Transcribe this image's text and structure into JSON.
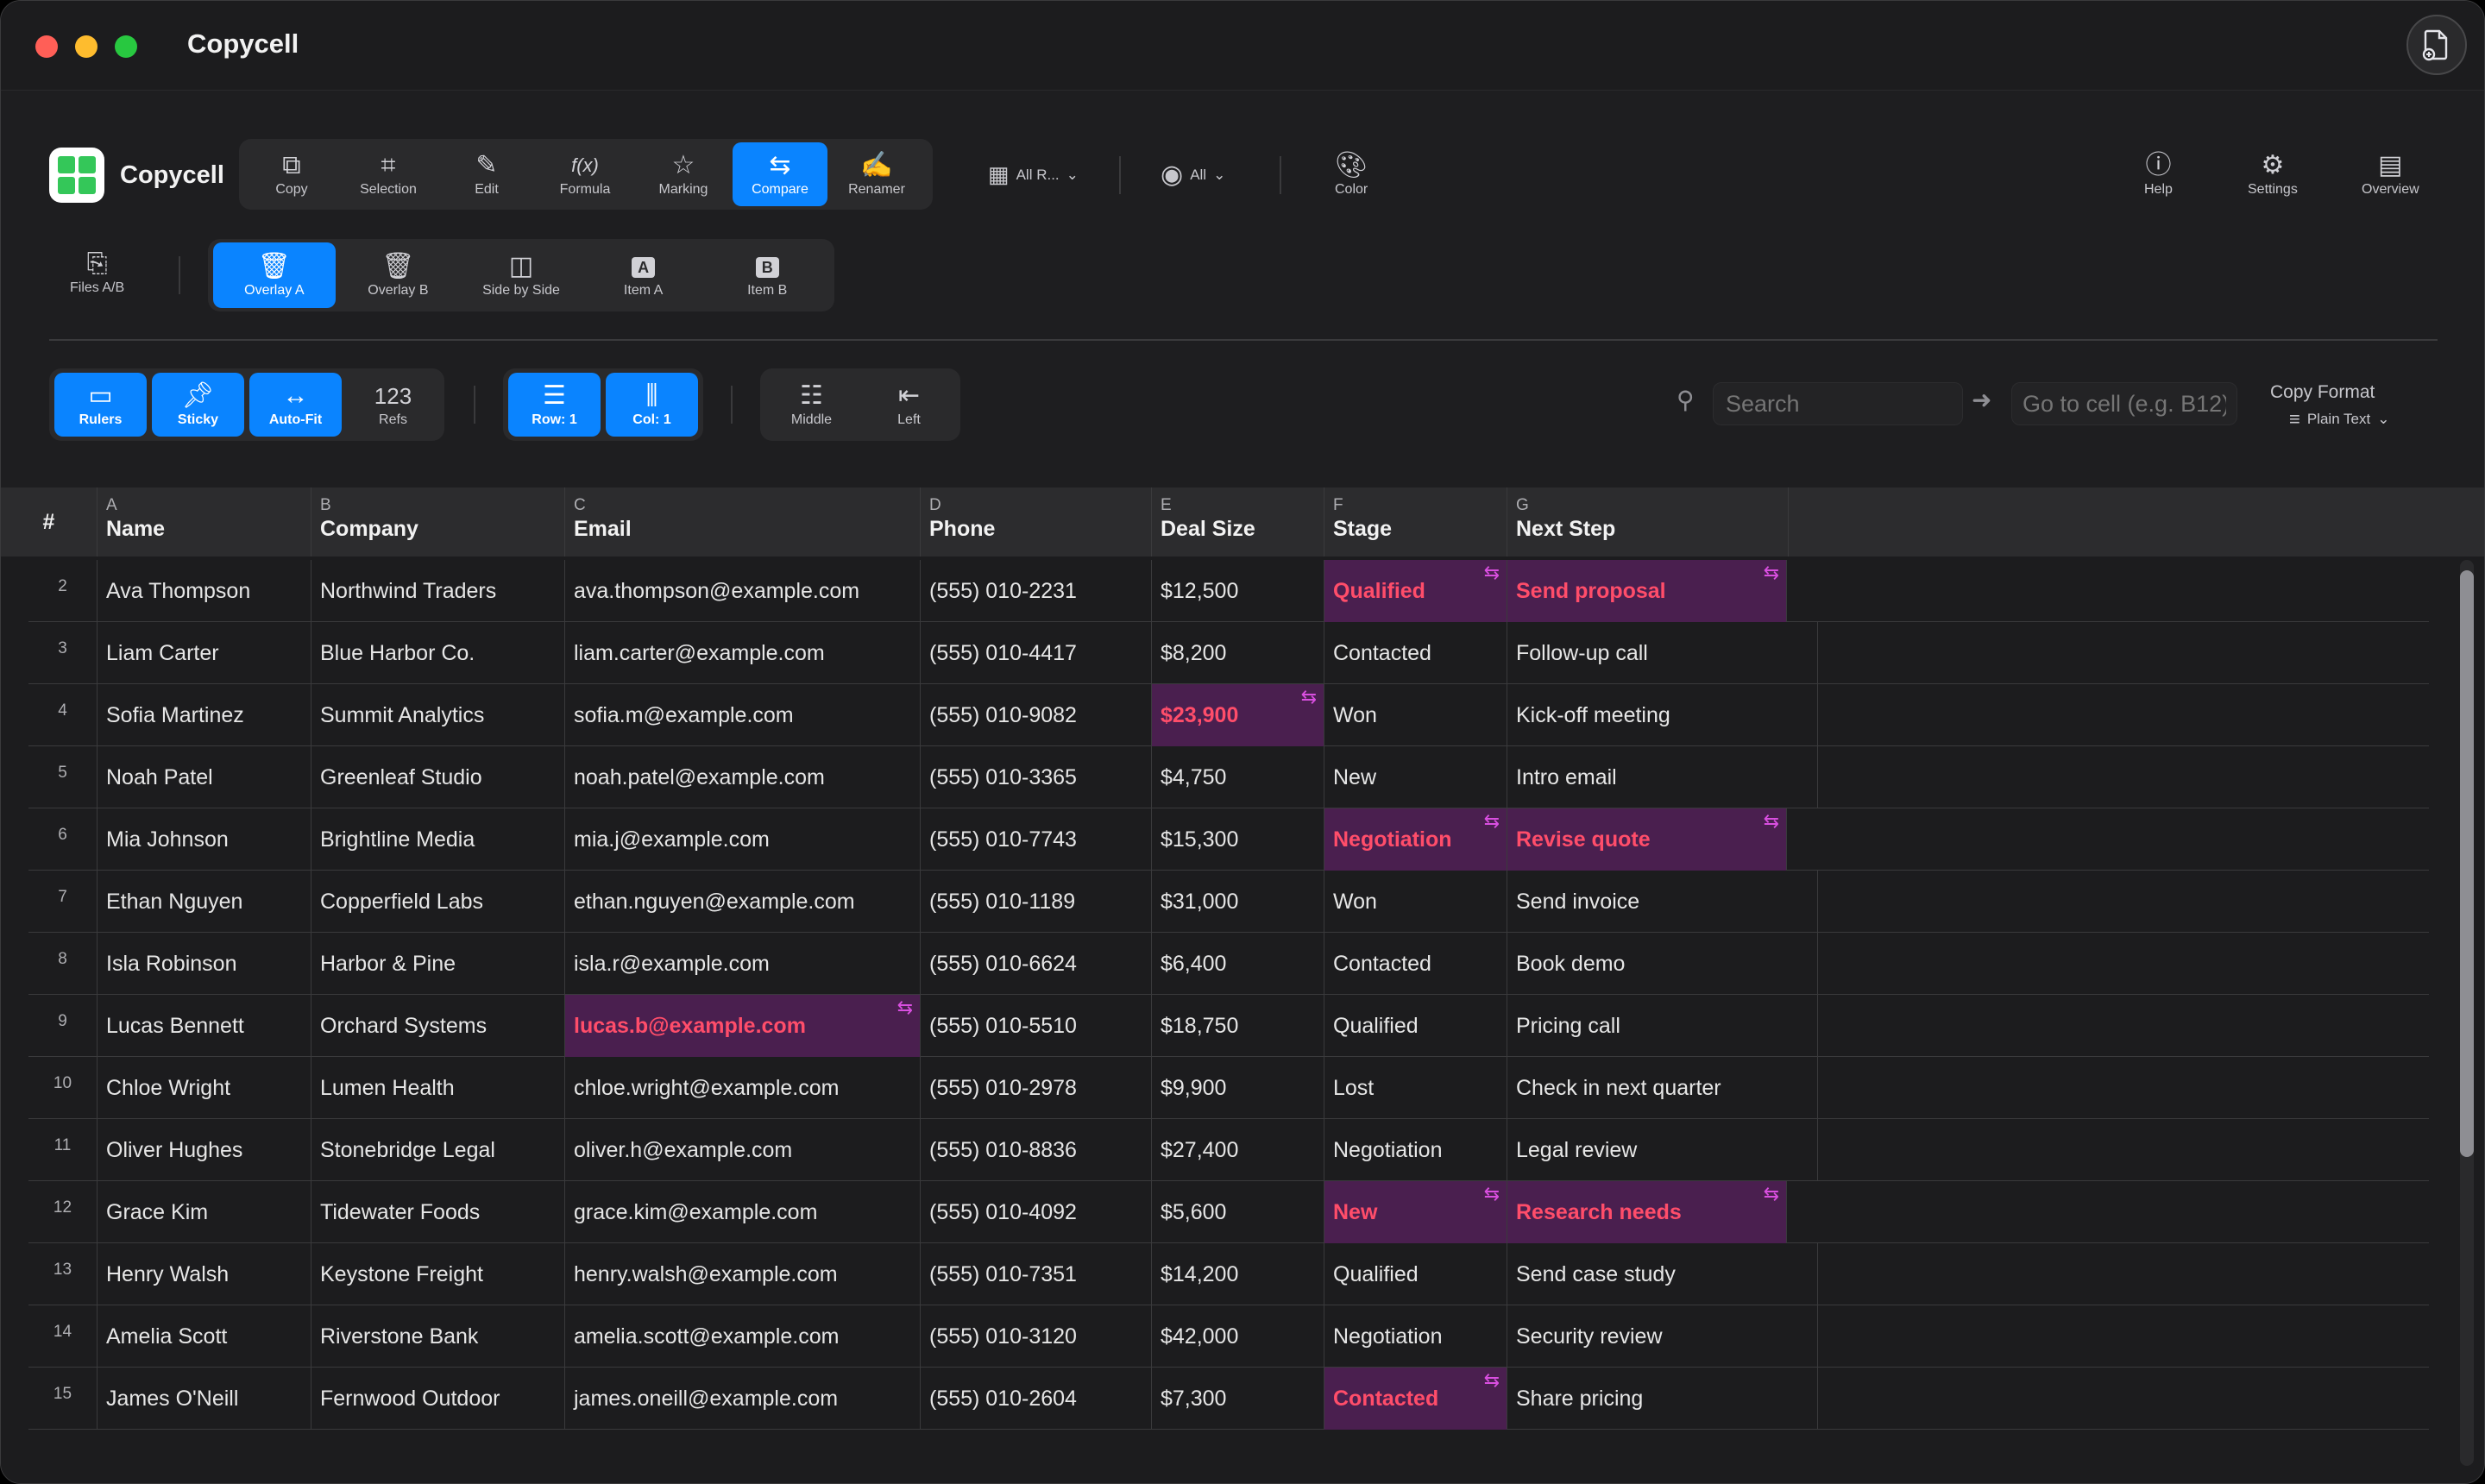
{
  "window": {
    "title": "Copycell"
  },
  "brand": {
    "name": "Copycell"
  },
  "toolbar": {
    "tools": [
      {
        "label": "Copy",
        "icon": "copy-icon"
      },
      {
        "label": "Selection",
        "icon": "crop-icon"
      },
      {
        "label": "Edit",
        "icon": "pencil-icon"
      },
      {
        "label": "Formula",
        "icon": "function-icon"
      },
      {
        "label": "Marking",
        "icon": "star-icon"
      },
      {
        "label": "Compare",
        "icon": "arrows-swap-icon",
        "active": true
      },
      {
        "label": "Renamer",
        "icon": "signature-icon"
      }
    ],
    "rows_dropdown": "All R...",
    "view_dropdown": "All",
    "color_label": "Color",
    "help_label": "Help",
    "settings_label": "Settings",
    "overview_label": "Overview"
  },
  "compare_bar": {
    "files_label": "Files A/B",
    "modes": [
      {
        "label": "Overlay A",
        "icon": "trash-overlay-icon",
        "active": true
      },
      {
        "label": "Overlay B",
        "icon": "trash-fill-icon"
      },
      {
        "label": "Side by Side",
        "icon": "columns-icon"
      },
      {
        "label": "Item A",
        "icon": "letter-a-icon",
        "glyph": "A"
      },
      {
        "label": "Item B",
        "icon": "letter-b-icon",
        "glyph": "B"
      }
    ]
  },
  "view_bar": {
    "toggles": [
      {
        "label": "Rulers",
        "icon": "ruler-icon",
        "active": true
      },
      {
        "label": "Sticky",
        "icon": "pin-icon",
        "active": true
      },
      {
        "label": "Auto-Fit",
        "icon": "resize-horizontal-icon",
        "active": true
      },
      {
        "label": "Refs",
        "glyph": "123",
        "active": false
      }
    ],
    "row_label": "Row: 1",
    "col_label": "Col: 1",
    "align_middle": "Middle",
    "align_left": "Left",
    "search_placeholder": "Search",
    "goto_placeholder": "Go to cell (e.g. B12)",
    "copy_format_label": "Copy Format",
    "copy_format_value": "Plain Text"
  },
  "grid": {
    "hash": "#",
    "columns": [
      {
        "letter": "A",
        "name": "Name"
      },
      {
        "letter": "B",
        "name": "Company"
      },
      {
        "letter": "C",
        "name": "Email"
      },
      {
        "letter": "D",
        "name": "Phone"
      },
      {
        "letter": "E",
        "name": "Deal Size"
      },
      {
        "letter": "F",
        "name": "Stage"
      },
      {
        "letter": "G",
        "name": "Next Step"
      }
    ],
    "rows": [
      {
        "num": "2",
        "cells": [
          "Ava Thompson",
          "Northwind Traders",
          "ava.thompson@example.com",
          "(555) 010-2231",
          "$12,500",
          "Qualified",
          "Send proposal"
        ],
        "diffs": [
          5,
          6
        ]
      },
      {
        "num": "3",
        "cells": [
          "Liam Carter",
          "Blue Harbor Co.",
          "liam.carter@example.com",
          "(555) 010-4417",
          "$8,200",
          "Contacted",
          "Follow-up call"
        ],
        "diffs": []
      },
      {
        "num": "4",
        "cells": [
          "Sofia Martinez",
          "Summit Analytics",
          "sofia.m@example.com",
          "(555) 010-9082",
          "$23,900",
          "Won",
          "Kick-off meeting"
        ],
        "diffs": [
          4
        ]
      },
      {
        "num": "5",
        "cells": [
          "Noah Patel",
          "Greenleaf Studio",
          "noah.patel@example.com",
          "(555) 010-3365",
          "$4,750",
          "New",
          "Intro email"
        ],
        "diffs": []
      },
      {
        "num": "6",
        "cells": [
          "Mia Johnson",
          "Brightline Media",
          "mia.j@example.com",
          "(555) 010-7743",
          "$15,300",
          "Negotiation",
          "Revise quote"
        ],
        "diffs": [
          5,
          6
        ]
      },
      {
        "num": "7",
        "cells": [
          "Ethan Nguyen",
          "Copperfield Labs",
          "ethan.nguyen@example.com",
          "(555) 010-1189",
          "$31,000",
          "Won",
          "Send invoice"
        ],
        "diffs": []
      },
      {
        "num": "8",
        "cells": [
          "Isla Robinson",
          "Harbor & Pine",
          "isla.r@example.com",
          "(555) 010-6624",
          "$6,400",
          "Contacted",
          "Book demo"
        ],
        "diffs": []
      },
      {
        "num": "9",
        "cells": [
          "Lucas Bennett",
          "Orchard Systems",
          "lucas.b@example.com",
          "(555) 010-5510",
          "$18,750",
          "Qualified",
          "Pricing call"
        ],
        "diffs": [
          2
        ]
      },
      {
        "num": "10",
        "cells": [
          "Chloe Wright",
          "Lumen Health",
          "chloe.wright@example.com",
          "(555) 010-2978",
          "$9,900",
          "Lost",
          "Check in next quarter"
        ],
        "diffs": []
      },
      {
        "num": "11",
        "cells": [
          "Oliver Hughes",
          "Stonebridge Legal",
          "oliver.h@example.com",
          "(555) 010-8836",
          "$27,400",
          "Negotiation",
          "Legal review"
        ],
        "diffs": []
      },
      {
        "num": "12",
        "cells": [
          "Grace Kim",
          "Tidewater Foods",
          "grace.kim@example.com",
          "(555) 010-4092",
          "$5,600",
          "New",
          "Research needs"
        ],
        "diffs": [
          5,
          6
        ]
      },
      {
        "num": "13",
        "cells": [
          "Henry Walsh",
          "Keystone Freight",
          "henry.walsh@example.com",
          "(555) 010-7351",
          "$14,200",
          "Qualified",
          "Send case study"
        ],
        "diffs": []
      },
      {
        "num": "14",
        "cells": [
          "Amelia Scott",
          "Riverstone Bank",
          "amelia.scott@example.com",
          "(555) 010-3120",
          "$42,000",
          "Negotiation",
          "Security review"
        ],
        "diffs": []
      },
      {
        "num": "15",
        "cells": [
          "James O'Neill",
          "Fernwood Outdoor",
          "james.oneill@example.com",
          "(555) 010-2604",
          "$7,300",
          "Contacted",
          "Share pricing"
        ],
        "diffs": [
          5
        ]
      }
    ]
  },
  "colors": {
    "accent": "#0a84ff",
    "diff_bg": "#4a1f4f",
    "diff_text": "#ff4d6a",
    "diff_icon": "#d94fe0"
  }
}
